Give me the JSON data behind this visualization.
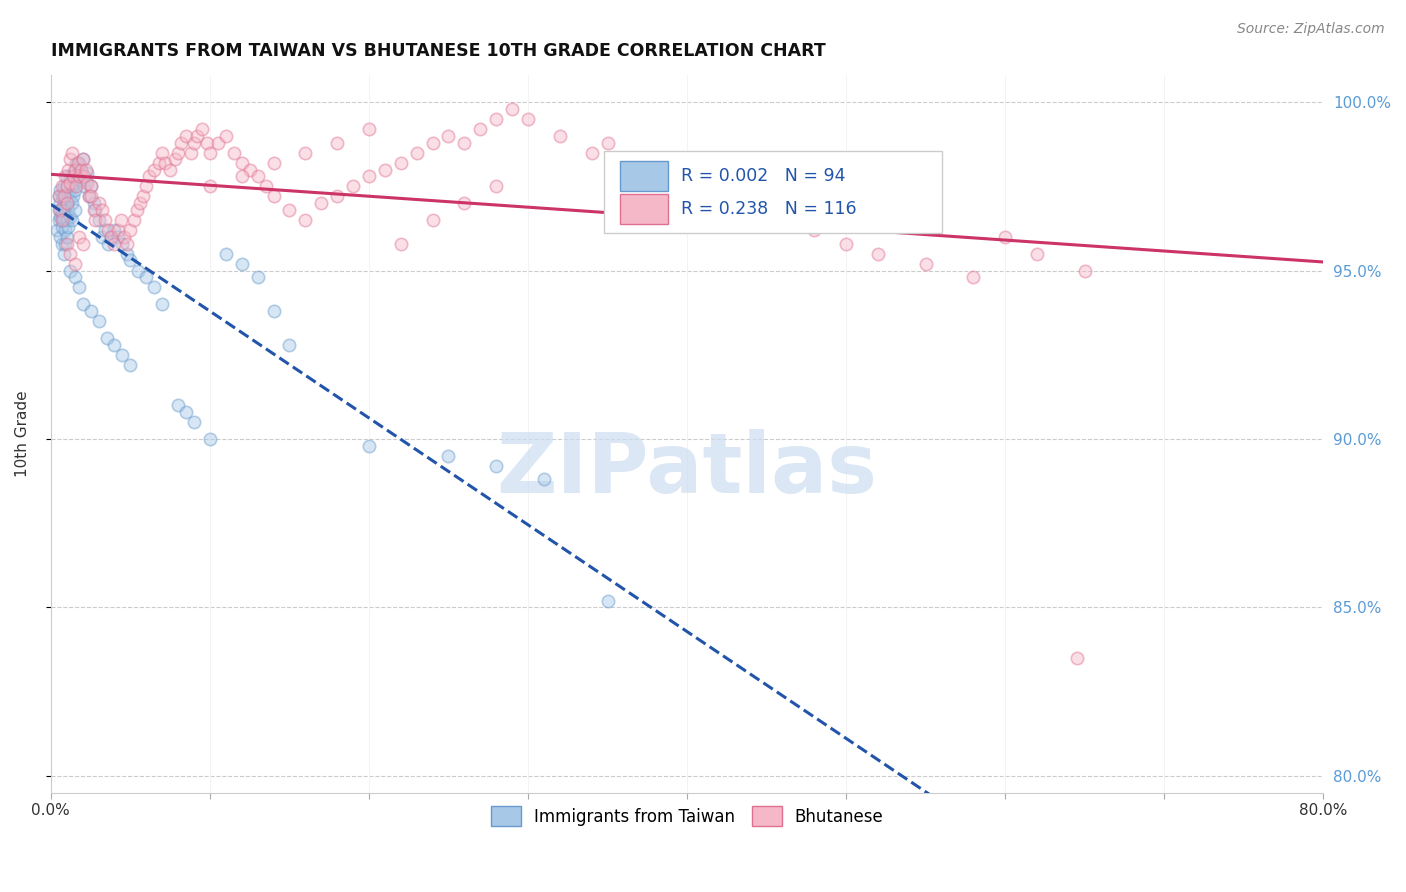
{
  "title": "IMMIGRANTS FROM TAIWAN VS BHUTANESE 10TH GRADE CORRELATION CHART",
  "source": "Source: ZipAtlas.com",
  "ylabel": "10th Grade",
  "xmin": 0.0,
  "xmax": 0.8,
  "ymin": 0.795,
  "ymax": 1.008,
  "yticks": [
    0.8,
    0.85,
    0.9,
    0.95,
    1.0
  ],
  "ytick_labels": [
    "80.0%",
    "85.0%",
    "90.0%",
    "95.0%",
    "100.0%"
  ],
  "xticks": [
    0.0,
    0.1,
    0.2,
    0.3,
    0.4,
    0.5,
    0.6,
    0.7,
    0.8
  ],
  "xtick_labels": [
    "0.0%",
    "",
    "",
    "",
    "",
    "",
    "",
    "",
    "80.0%"
  ],
  "taiwan_R": 0.002,
  "taiwan_N": 94,
  "bhutan_R": 0.238,
  "bhutan_N": 116,
  "taiwan_color": "#a8c8e8",
  "taiwan_edge_color": "#6699cc",
  "bhutan_color": "#f5b8c8",
  "bhutan_edge_color": "#e07090",
  "trend_taiwan_color": "#2255aa",
  "trend_bhutan_color": "#cc3366",
  "taiwan_x": [
    0.004,
    0.005,
    0.005,
    0.005,
    0.006,
    0.006,
    0.006,
    0.006,
    0.007,
    0.007,
    0.007,
    0.007,
    0.007,
    0.008,
    0.008,
    0.008,
    0.009,
    0.009,
    0.009,
    0.009,
    0.01,
    0.01,
    0.01,
    0.01,
    0.01,
    0.01,
    0.011,
    0.011,
    0.011,
    0.012,
    0.012,
    0.012,
    0.013,
    0.013,
    0.013,
    0.014,
    0.014,
    0.015,
    0.015,
    0.015,
    0.016,
    0.016,
    0.017,
    0.018,
    0.018,
    0.019,
    0.02,
    0.02,
    0.021,
    0.022,
    0.023,
    0.024,
    0.025,
    0.027,
    0.028,
    0.03,
    0.032,
    0.034,
    0.036,
    0.038,
    0.04,
    0.042,
    0.045,
    0.048,
    0.05,
    0.055,
    0.06,
    0.065,
    0.07,
    0.08,
    0.085,
    0.09,
    0.1,
    0.11,
    0.12,
    0.13,
    0.14,
    0.15,
    0.2,
    0.25,
    0.28,
    0.31,
    0.008,
    0.012,
    0.015,
    0.018,
    0.02,
    0.025,
    0.03,
    0.035,
    0.04,
    0.045,
    0.05,
    0.35
  ],
  "taiwan_y": [
    0.962,
    0.965,
    0.968,
    0.972,
    0.96,
    0.966,
    0.97,
    0.974,
    0.968,
    0.963,
    0.958,
    0.972,
    0.966,
    0.97,
    0.975,
    0.965,
    0.972,
    0.968,
    0.962,
    0.958,
    0.975,
    0.97,
    0.965,
    0.96,
    0.978,
    0.972,
    0.973,
    0.968,
    0.963,
    0.978,
    0.972,
    0.966,
    0.975,
    0.97,
    0.965,
    0.978,
    0.972,
    0.98,
    0.974,
    0.968,
    0.982,
    0.976,
    0.979,
    0.982,
    0.977,
    0.98,
    0.983,
    0.978,
    0.975,
    0.977,
    0.979,
    0.972,
    0.975,
    0.97,
    0.968,
    0.965,
    0.96,
    0.962,
    0.958,
    0.96,
    0.962,
    0.96,
    0.958,
    0.955,
    0.953,
    0.95,
    0.948,
    0.945,
    0.94,
    0.91,
    0.908,
    0.905,
    0.9,
    0.955,
    0.952,
    0.948,
    0.938,
    0.928,
    0.898,
    0.895,
    0.892,
    0.888,
    0.955,
    0.95,
    0.948,
    0.945,
    0.94,
    0.938,
    0.935,
    0.93,
    0.928,
    0.925,
    0.922,
    0.852
  ],
  "bhutan_x": [
    0.005,
    0.006,
    0.007,
    0.007,
    0.008,
    0.009,
    0.01,
    0.01,
    0.011,
    0.012,
    0.012,
    0.013,
    0.014,
    0.015,
    0.016,
    0.017,
    0.018,
    0.019,
    0.02,
    0.021,
    0.022,
    0.023,
    0.024,
    0.025,
    0.027,
    0.028,
    0.03,
    0.032,
    0.034,
    0.036,
    0.038,
    0.04,
    0.042,
    0.044,
    0.046,
    0.048,
    0.05,
    0.052,
    0.054,
    0.056,
    0.058,
    0.06,
    0.062,
    0.065,
    0.068,
    0.07,
    0.072,
    0.075,
    0.078,
    0.08,
    0.082,
    0.085,
    0.088,
    0.09,
    0.092,
    0.095,
    0.098,
    0.1,
    0.105,
    0.11,
    0.115,
    0.12,
    0.125,
    0.13,
    0.135,
    0.14,
    0.15,
    0.16,
    0.17,
    0.18,
    0.19,
    0.2,
    0.21,
    0.22,
    0.23,
    0.24,
    0.25,
    0.26,
    0.27,
    0.28,
    0.29,
    0.3,
    0.32,
    0.34,
    0.35,
    0.36,
    0.38,
    0.4,
    0.42,
    0.44,
    0.46,
    0.48,
    0.5,
    0.52,
    0.55,
    0.58,
    0.6,
    0.62,
    0.65,
    0.01,
    0.012,
    0.015,
    0.018,
    0.02,
    0.025,
    0.1,
    0.12,
    0.14,
    0.16,
    0.18,
    0.2,
    0.22,
    0.24,
    0.26,
    0.28,
    0.645
  ],
  "bhutan_y": [
    0.972,
    0.968,
    0.975,
    0.965,
    0.972,
    0.978,
    0.975,
    0.97,
    0.98,
    0.983,
    0.976,
    0.985,
    0.978,
    0.98,
    0.975,
    0.982,
    0.978,
    0.98,
    0.983,
    0.978,
    0.98,
    0.976,
    0.972,
    0.975,
    0.968,
    0.965,
    0.97,
    0.968,
    0.965,
    0.962,
    0.96,
    0.958,
    0.962,
    0.965,
    0.96,
    0.958,
    0.962,
    0.965,
    0.968,
    0.97,
    0.972,
    0.975,
    0.978,
    0.98,
    0.982,
    0.985,
    0.982,
    0.98,
    0.983,
    0.985,
    0.988,
    0.99,
    0.985,
    0.988,
    0.99,
    0.992,
    0.988,
    0.985,
    0.988,
    0.99,
    0.985,
    0.982,
    0.98,
    0.978,
    0.975,
    0.972,
    0.968,
    0.965,
    0.97,
    0.972,
    0.975,
    0.978,
    0.98,
    0.982,
    0.985,
    0.988,
    0.99,
    0.988,
    0.992,
    0.995,
    0.998,
    0.995,
    0.99,
    0.985,
    0.988,
    0.982,
    0.978,
    0.975,
    0.972,
    0.968,
    0.965,
    0.962,
    0.958,
    0.955,
    0.952,
    0.948,
    0.96,
    0.955,
    0.95,
    0.958,
    0.955,
    0.952,
    0.96,
    0.958,
    0.972,
    0.975,
    0.978,
    0.982,
    0.985,
    0.988,
    0.992,
    0.958,
    0.965,
    0.97,
    0.975,
    0.835
  ],
  "marker_size": 80,
  "alpha": 0.45,
  "grid_color": "#cccccc",
  "background_color": "#ffffff",
  "watermark_color": "#ccddf0"
}
